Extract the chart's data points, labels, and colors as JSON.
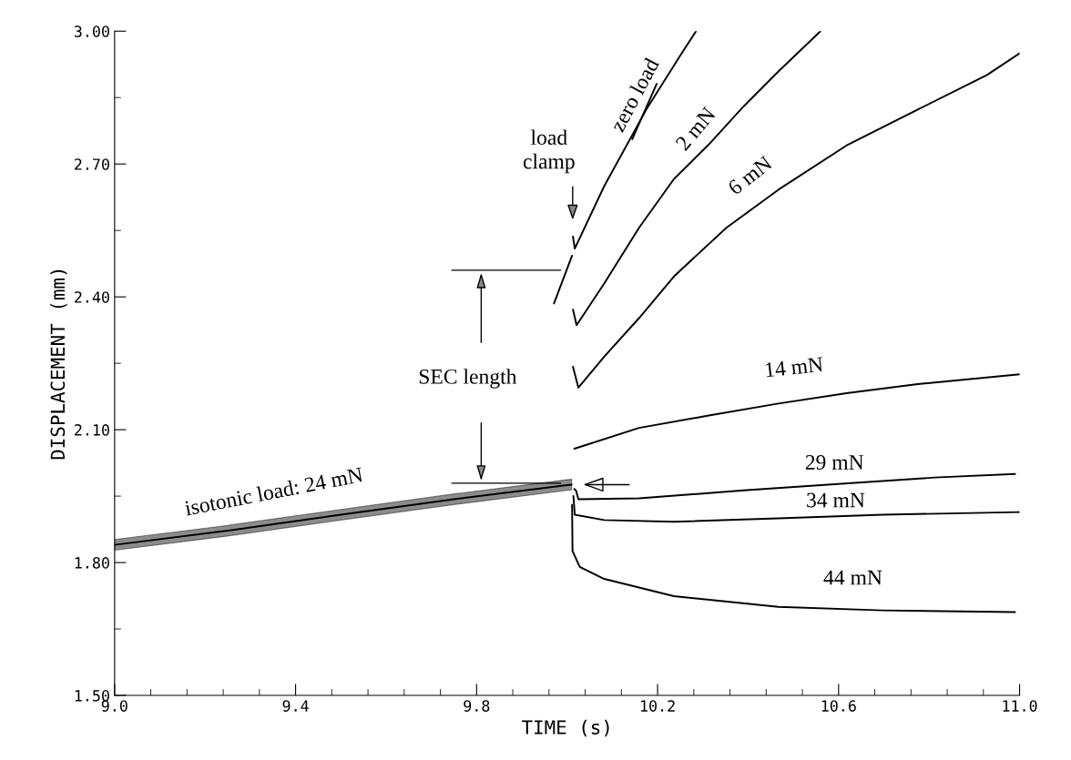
{
  "chart_data": {
    "type": "line",
    "xlabel": "TIME (s)",
    "ylabel": "DISPLACEMENT (mm)",
    "xlim": [
      9.0,
      11.0
    ],
    "ylim": [
      1.5,
      3.0
    ],
    "xticks": [
      {
        "value": 9.0,
        "label": "9.0"
      },
      {
        "value": 9.08,
        "label": null
      },
      {
        "value": 9.16,
        "label": null
      },
      {
        "value": 9.24,
        "label": null
      },
      {
        "value": 9.32,
        "label": null
      },
      {
        "value": 9.4,
        "label": "9.4"
      },
      {
        "value": 9.48,
        "label": null
      },
      {
        "value": 9.56,
        "label": null
      },
      {
        "value": 9.64,
        "label": null
      },
      {
        "value": 9.72,
        "label": null
      },
      {
        "value": 9.8,
        "label": "9.8"
      },
      {
        "value": 9.88,
        "label": null
      },
      {
        "value": 9.96,
        "label": null
      },
      {
        "value": 10.04,
        "label": null
      },
      {
        "value": 10.12,
        "label": null
      },
      {
        "value": 10.2,
        "label": "10.2"
      },
      {
        "value": 10.28,
        "label": null
      },
      {
        "value": 10.36,
        "label": null
      },
      {
        "value": 10.44,
        "label": null
      },
      {
        "value": 10.52,
        "label": null
      },
      {
        "value": 10.6,
        "label": "10.6"
      },
      {
        "value": 10.68,
        "label": null
      },
      {
        "value": 10.76,
        "label": null
      },
      {
        "value": 10.84,
        "label": null
      },
      {
        "value": 10.92,
        "label": null
      },
      {
        "value": 11.0,
        "label": "11.0"
      }
    ],
    "yticks": [
      {
        "value": 1.5,
        "label": "1.50"
      },
      {
        "value": 1.65,
        "label": null
      },
      {
        "value": 1.8,
        "label": "1.80"
      },
      {
        "value": 1.95,
        "label": null
      },
      {
        "value": 2.1,
        "label": "2.10"
      },
      {
        "value": 2.25,
        "label": null
      },
      {
        "value": 2.4,
        "label": "2.40"
      },
      {
        "value": 2.55,
        "label": null
      },
      {
        "value": 2.7,
        "label": "2.70"
      },
      {
        "value": 2.85,
        "label": null
      },
      {
        "value": 3.0,
        "label": "3.00"
      }
    ],
    "series": [
      {
        "name": "isotonic load: 24 mN",
        "color": "#000000",
        "x": [
          9.0,
          9.25,
          9.5,
          9.75,
          10.0,
          10.01
        ],
        "values": [
          1.84,
          1.872,
          1.908,
          1.943,
          1.975,
          1.976
        ],
        "lower": [
          1.828,
          1.86,
          1.896,
          1.931,
          1.963,
          1.964
        ],
        "upper": [
          1.852,
          1.884,
          1.92,
          1.955,
          1.987,
          1.988
        ]
      },
      {
        "name": "zero load",
        "color": "#000000",
        "x": [
          10.013,
          10.017,
          10.082,
          10.175,
          10.252,
          10.285
        ],
        "values": [
          2.536,
          2.509,
          2.65,
          2.823,
          2.948,
          3.0
        ]
      },
      {
        "color": "#000000",
        "x": [
          9.971,
          10.011
        ],
        "values": [
          2.385,
          2.493
        ]
      },
      {
        "color": "#000000",
        "x": [
          10.144,
          10.198
        ],
        "values": [
          2.756,
          2.881
        ]
      },
      {
        "name": "2 mN",
        "color": "#000000",
        "x": [
          10.013,
          10.021,
          10.082,
          10.159,
          10.236,
          10.313,
          10.39,
          10.467,
          10.56
        ],
        "values": [
          2.371,
          2.336,
          2.43,
          2.556,
          2.666,
          2.744,
          2.83,
          2.909,
          3.0
        ]
      },
      {
        "name": "6 mN",
        "color": "#000000",
        "x": [
          10.013,
          10.025,
          10.082,
          10.159,
          10.236,
          10.352,
          10.467,
          10.621,
          10.775,
          10.928,
          11.0
        ],
        "values": [
          2.242,
          2.195,
          2.265,
          2.352,
          2.446,
          2.556,
          2.642,
          2.744,
          2.823,
          2.901,
          2.95
        ]
      },
      {
        "name": "14 mN",
        "color": "#000000",
        "x": [
          10.016,
          10.159,
          10.313,
          10.467,
          10.621,
          10.775,
          11.0
        ],
        "values": [
          2.057,
          2.104,
          2.132,
          2.159,
          2.183,
          2.203,
          2.225
        ]
      },
      {
        "name": "29 mN",
        "color": "#000000",
        "x": [
          10.016,
          10.02,
          10.025,
          10.159,
          10.39,
          10.621,
          10.813,
          10.99
        ],
        "values": [
          1.966,
          1.962,
          1.943,
          1.945,
          1.963,
          1.979,
          1.992,
          2.0
        ]
      },
      {
        "name": "34 mN",
        "color": "#000000",
        "x": [
          10.014,
          10.017,
          10.082,
          10.236,
          10.467,
          10.698,
          11.0
        ],
        "values": [
          1.95,
          1.908,
          1.896,
          1.892,
          1.9,
          1.908,
          1.914
        ]
      },
      {
        "name": "44 mN",
        "color": "#000000",
        "x": [
          10.011,
          10.012,
          10.028,
          10.082,
          10.236,
          10.467,
          10.698,
          10.99
        ],
        "values": [
          1.93,
          1.826,
          1.79,
          1.763,
          1.724,
          1.7,
          1.692,
          1.688
        ]
      }
    ],
    "annotations": [
      "load clamp",
      "SEC length"
    ]
  }
}
